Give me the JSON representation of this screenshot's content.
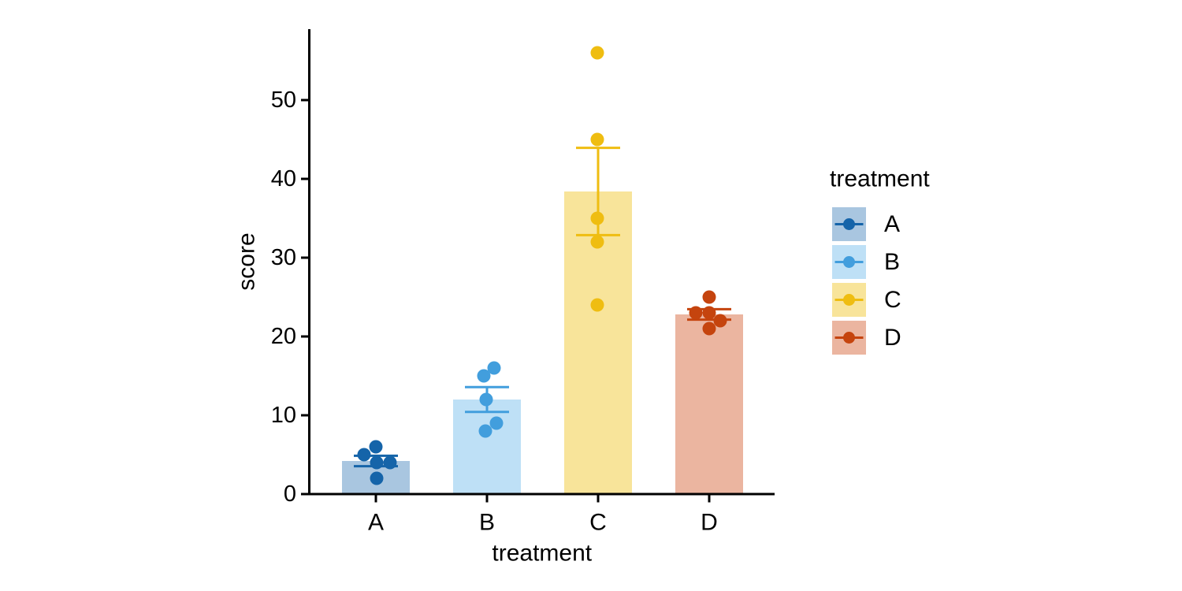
{
  "figure": {
    "background": "#FFFFFF",
    "text_color": "#000000",
    "axis_color": "#000000"
  },
  "chart_data": {
    "type": "bar",
    "title": "",
    "xlabel": "treatment",
    "ylabel": "score",
    "categories": [
      "A",
      "B",
      "C",
      "D"
    ],
    "ylim": [
      0,
      59
    ],
    "yticks": [
      0,
      10,
      20,
      30,
      40,
      50
    ],
    "grid": false,
    "legend": {
      "title": "treatment",
      "position": "right",
      "entries": [
        "A",
        "B",
        "C",
        "D"
      ]
    },
    "series": [
      {
        "name": "A",
        "mean": 4.2,
        "se": 0.66,
        "points": [
          6,
          5,
          4,
          4,
          2
        ],
        "jitter_dx": [
          0,
          -15,
          1,
          18,
          1
        ],
        "point_color": "#1564A9",
        "bar_color": "#A9C6E0"
      },
      {
        "name": "B",
        "mean": 12.0,
        "se": 1.58,
        "points": [
          16,
          15,
          12,
          9,
          8
        ],
        "jitter_dx": [
          9,
          -4,
          -1,
          12,
          -2
        ],
        "point_color": "#429EDD",
        "bar_color": "#BEE0F6"
      },
      {
        "name": "C",
        "mean": 38.4,
        "se": 5.54,
        "points": [
          56,
          45,
          35,
          32,
          24
        ],
        "jitter_dx": [
          -1,
          -1,
          -1,
          -1,
          -1
        ],
        "point_color": "#EFBD11",
        "bar_color": "#F8E49A"
      },
      {
        "name": "D",
        "mean": 22.8,
        "se": 0.66,
        "points": [
          25,
          23,
          23,
          22,
          21
        ],
        "jitter_dx": [
          0,
          -17,
          0,
          14,
          0
        ],
        "point_color": "#C5440E",
        "bar_color": "#EBB5A0"
      }
    ]
  }
}
